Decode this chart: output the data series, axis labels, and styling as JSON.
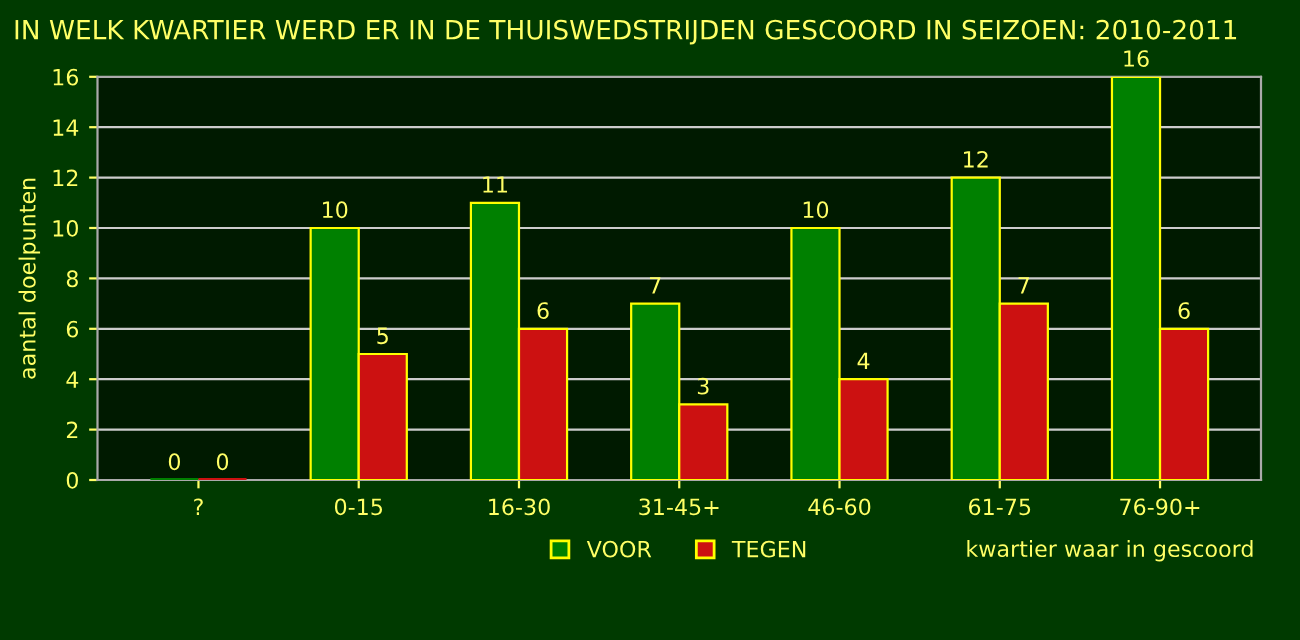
{
  "chart_data": {
    "type": "bar",
    "title": "IN WELK KWARTIER WERD ER IN DE THUISWEDSTRIJDEN GESCOORD IN SEIZOEN: 2010-2011",
    "xlabel": "kwartier waar in gescoord",
    "ylabel": "aantal doelpunten",
    "categories": [
      "?",
      "0-15",
      "16-30",
      "31-45+",
      "46-60",
      "61-75",
      "76-90+"
    ],
    "series": [
      {
        "name": "VOOR",
        "color": "#008000",
        "values": [
          0,
          10,
          11,
          7,
          10,
          12,
          16
        ]
      },
      {
        "name": "TEGEN",
        "color": "#cc1111",
        "values": [
          0,
          5,
          6,
          3,
          4,
          7,
          6
        ]
      }
    ],
    "ylim": [
      0,
      16
    ],
    "yticks": [
      0,
      2,
      4,
      6,
      8,
      10,
      12,
      14,
      16
    ],
    "grid": "y",
    "legend": "bottom",
    "data_labels": true
  }
}
